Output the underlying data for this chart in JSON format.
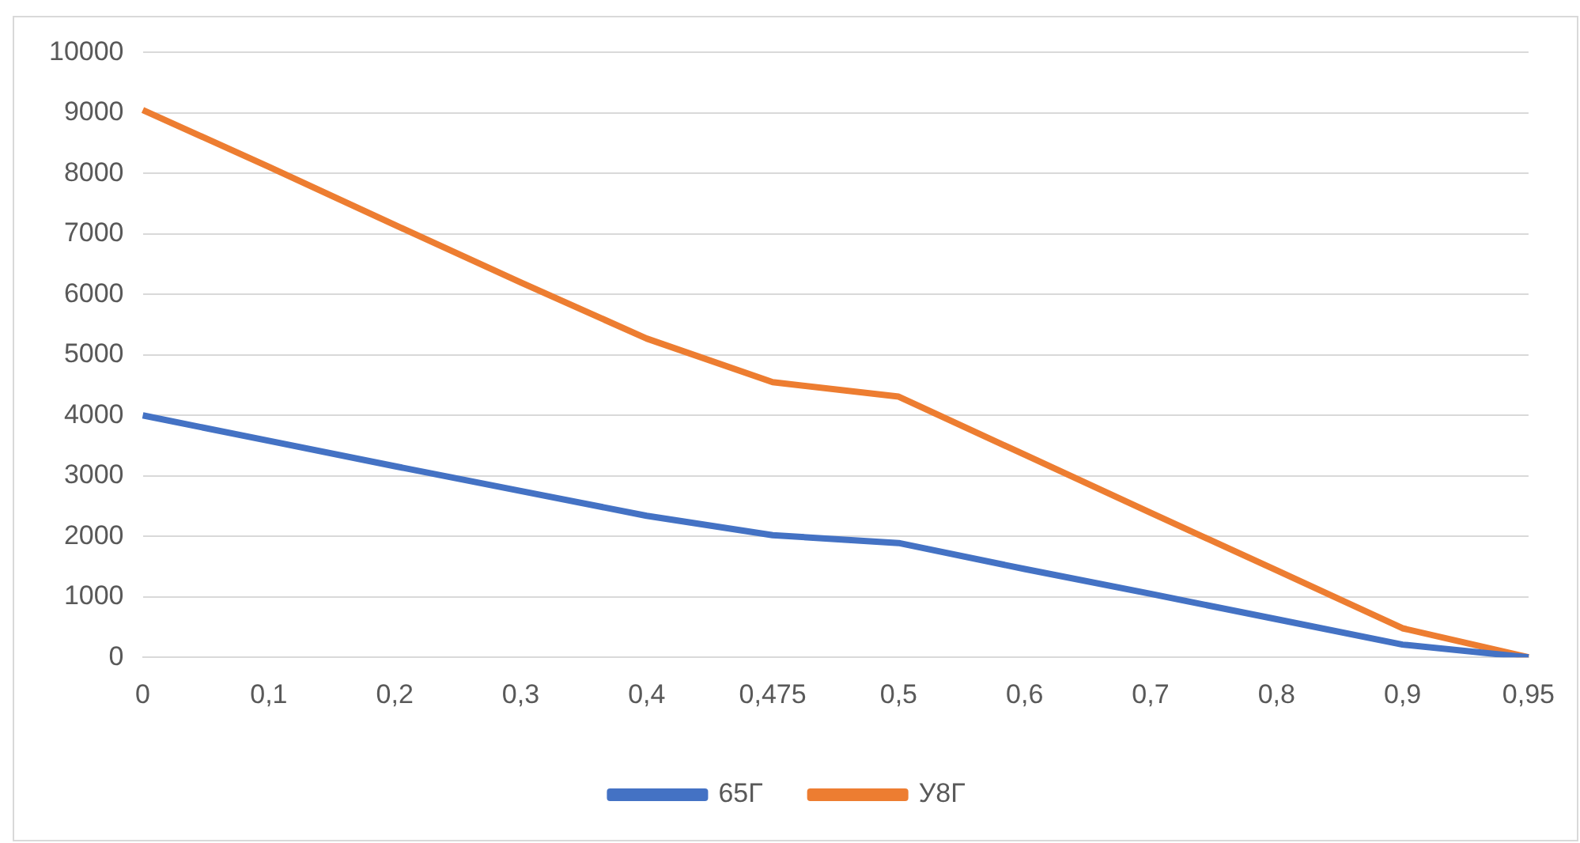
{
  "chart_data": {
    "type": "line",
    "categories": [
      "0",
      "0,1",
      "0,2",
      "0,3",
      "0,4",
      "0,475",
      "0,5",
      "0,6",
      "0,7",
      "0,8",
      "0,9",
      "0,95"
    ],
    "series": [
      {
        "name": "65Г",
        "color": "#4472c4",
        "values": [
          4000,
          3580,
          3160,
          2750,
          2340,
          2020,
          1890,
          1460,
          1050,
          630,
          210,
          0
        ]
      },
      {
        "name": "У8Г",
        "color": "#ed7d31",
        "values": [
          9050,
          8110,
          7150,
          6200,
          5270,
          4550,
          4310,
          3350,
          2390,
          1440,
          480,
          0
        ]
      }
    ],
    "ylim": [
      0,
      10000
    ],
    "yticks": [
      0,
      1000,
      2000,
      3000,
      4000,
      5000,
      6000,
      7000,
      8000,
      9000,
      10000
    ],
    "grid": "y",
    "legend": "bottom",
    "marker": "none"
  }
}
